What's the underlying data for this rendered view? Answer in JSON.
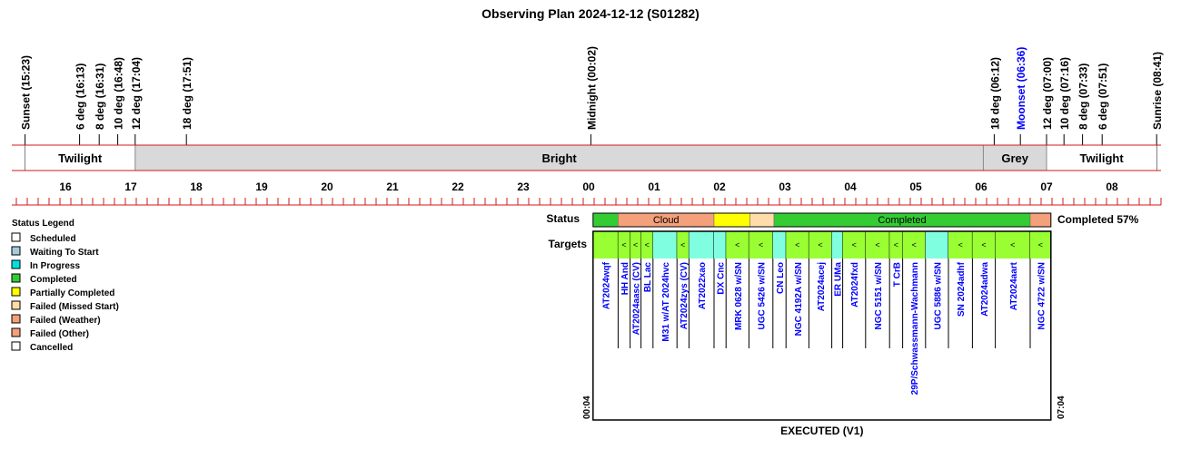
{
  "title": "Observing Plan 2024-12-12 (S01282)",
  "colors": {
    "axis_red": "#d01818",
    "twilight": "#ffffff",
    "bright": "#d9d9d9",
    "grey": "#d9d9d9",
    "moon_text": "#0000ff",
    "target_text": "#0000ff",
    "status_cloud": "#f4a07a",
    "status_completed": "#33cc33",
    "status_partial": "#ffff00",
    "status_missed": "#ffdcaa",
    "target_lime": "#99ff33",
    "target_cyan": "#80ffe0"
  },
  "chart_data": {
    "type": "timeline",
    "time_axis": {
      "start": "15:15",
      "end": "08:45",
      "hour_ticks": [
        "16",
        "17",
        "18",
        "19",
        "20",
        "21",
        "22",
        "23",
        "00",
        "01",
        "02",
        "03",
        "04",
        "05",
        "06",
        "07",
        "08"
      ]
    },
    "events": [
      {
        "label": "Sunset (15:23)",
        "time": "15:23",
        "color": "black"
      },
      {
        "label": "6 deg (16:13)",
        "time": "16:13",
        "color": "black"
      },
      {
        "label": "8 deg (16:31)",
        "time": "16:31",
        "color": "black"
      },
      {
        "label": "10 deg (16:48)",
        "time": "16:48",
        "color": "black"
      },
      {
        "label": "12 deg (17:04)",
        "time": "17:04",
        "color": "black"
      },
      {
        "label": "18 deg (17:51)",
        "time": "17:51",
        "color": "black"
      },
      {
        "label": "Midnight (00:02)",
        "time": "00:02",
        "color": "black"
      },
      {
        "label": "18 deg (06:12)",
        "time": "06:12",
        "color": "black"
      },
      {
        "label": "Moonset (06:36)",
        "time": "06:36",
        "color": "blue"
      },
      {
        "label": "12 deg (07:00)",
        "time": "07:00",
        "color": "black"
      },
      {
        "label": "10 deg (07:16)",
        "time": "07:16",
        "color": "black"
      },
      {
        "label": "8 deg (07:33)",
        "time": "07:33",
        "color": "black"
      },
      {
        "label": "6 deg (07:51)",
        "time": "07:51",
        "color": "black"
      },
      {
        "label": "Sunrise (08:41)",
        "time": "08:41",
        "color": "black"
      }
    ],
    "sky_phases": [
      {
        "label": "Twilight",
        "start": "15:23",
        "end": "17:04",
        "kind": "twilight"
      },
      {
        "label": "Bright",
        "start": "17:04",
        "end": "06:02",
        "kind": "bright"
      },
      {
        "label": "Grey",
        "start": "06:02",
        "end": "07:00",
        "kind": "grey"
      },
      {
        "label": "Twilight",
        "start": "07:00",
        "end": "08:41",
        "kind": "twilight"
      }
    ],
    "legend": {
      "title": "Status Legend",
      "items": [
        {
          "label": "Scheduled",
          "color": "#ffffff"
        },
        {
          "label": "Waiting To Start",
          "color": "#a6cbe0"
        },
        {
          "label": "In Progress",
          "color": "#00e0e0"
        },
        {
          "label": "Completed",
          "color": "#33cc33"
        },
        {
          "label": "Partially Completed",
          "color": "#ffff00"
        },
        {
          "label": "Failed (Missed Start)",
          "color": "#ffdcaa"
        },
        {
          "label": "Failed (Weather)",
          "color": "#f4a07a"
        },
        {
          "label": "Failed (Other)",
          "color": "#f4a07a"
        },
        {
          "label": "Cancelled",
          "color": "#ffffff"
        }
      ]
    },
    "status_label": "Status",
    "targets_label": "Targets",
    "status_segments": [
      {
        "start": "00:04",
        "end": "00:27",
        "status": "completed",
        "label": ""
      },
      {
        "start": "00:27",
        "end": "01:55",
        "status": "cloud",
        "label": "Cloud"
      },
      {
        "start": "01:55",
        "end": "02:28",
        "status": "partial",
        "label": ""
      },
      {
        "start": "02:28",
        "end": "02:50",
        "status": "missed",
        "label": ""
      },
      {
        "start": "02:50",
        "end": "06:45",
        "status": "completed",
        "label": "Completed"
      },
      {
        "start": "06:45",
        "end": "07:04",
        "status": "cloud",
        "label": ""
      }
    ],
    "completed_summary": "Completed 57%",
    "targets": [
      {
        "name": "AT2024wqf",
        "start": "00:04",
        "end": "00:27",
        "fill": "lime",
        "mark": ""
      },
      {
        "name": "HH And",
        "start": "00:27",
        "end": "00:38",
        "fill": "lime",
        "mark": "<"
      },
      {
        "name": "AT2024aasc (CV)",
        "start": "00:38",
        "end": "00:48",
        "fill": "lime",
        "mark": "<"
      },
      {
        "name": "BL Lac",
        "start": "00:48",
        "end": "00:59",
        "fill": "lime",
        "mark": "<"
      },
      {
        "name": "M31 w/AT 2024hvc",
        "start": "00:59",
        "end": "01:21",
        "fill": "cyan",
        "mark": ""
      },
      {
        "name": "AT2024zys (CV)",
        "start": "01:21",
        "end": "01:32",
        "fill": "lime",
        "mark": "<"
      },
      {
        "name": "AT2022xao",
        "start": "01:32",
        "end": "01:55",
        "fill": "cyan",
        "mark": ""
      },
      {
        "name": "DX Cnc",
        "start": "01:55",
        "end": "02:06",
        "fill": "cyan",
        "mark": ""
      },
      {
        "name": "MRK 0628 w/SN",
        "start": "02:06",
        "end": "02:27",
        "fill": "lime",
        "mark": "<"
      },
      {
        "name": "UGC 5426 w/SN",
        "start": "02:27",
        "end": "02:49",
        "fill": "lime",
        "mark": "<"
      },
      {
        "name": "CN Leo",
        "start": "02:49",
        "end": "03:01",
        "fill": "cyan",
        "mark": ""
      },
      {
        "name": "NGC 4192A w/SN",
        "start": "03:01",
        "end": "03:22",
        "fill": "lime",
        "mark": "<"
      },
      {
        "name": "AT2024acej",
        "start": "03:22",
        "end": "03:43",
        "fill": "lime",
        "mark": "<"
      },
      {
        "name": "ER UMa",
        "start": "03:43",
        "end": "03:53",
        "fill": "cyan",
        "mark": ""
      },
      {
        "name": "AT2024fxd",
        "start": "03:53",
        "end": "04:14",
        "fill": "lime",
        "mark": "<"
      },
      {
        "name": "NGC 5151 w/SN",
        "start": "04:14",
        "end": "04:36",
        "fill": "lime",
        "mark": "<"
      },
      {
        "name": "T CrB",
        "start": "04:36",
        "end": "04:48",
        "fill": "lime",
        "mark": "<"
      },
      {
        "name": "29P/Schwassmann-Wachmann",
        "start": "04:48",
        "end": "05:09",
        "fill": "lime",
        "mark": "<"
      },
      {
        "name": "UGC 5886 w/SN",
        "start": "05:09",
        "end": "05:30",
        "fill": "cyan",
        "mark": ""
      },
      {
        "name": "SN 2024adhf",
        "start": "05:30",
        "end": "05:52",
        "fill": "lime",
        "mark": "<"
      },
      {
        "name": "AT2024adwa",
        "start": "05:52",
        "end": "06:13",
        "fill": "lime",
        "mark": "<"
      },
      {
        "name": "AT2024aart",
        "start": "06:13",
        "end": "06:45",
        "fill": "lime",
        "mark": "<"
      },
      {
        "name": "NGC 4722 w/SN",
        "start": "06:45",
        "end": "07:04",
        "fill": "lime",
        "mark": "<"
      }
    ],
    "executed": {
      "label": "EXECUTED (V1)",
      "start_label": "00:04",
      "end_label": "07:04"
    }
  }
}
